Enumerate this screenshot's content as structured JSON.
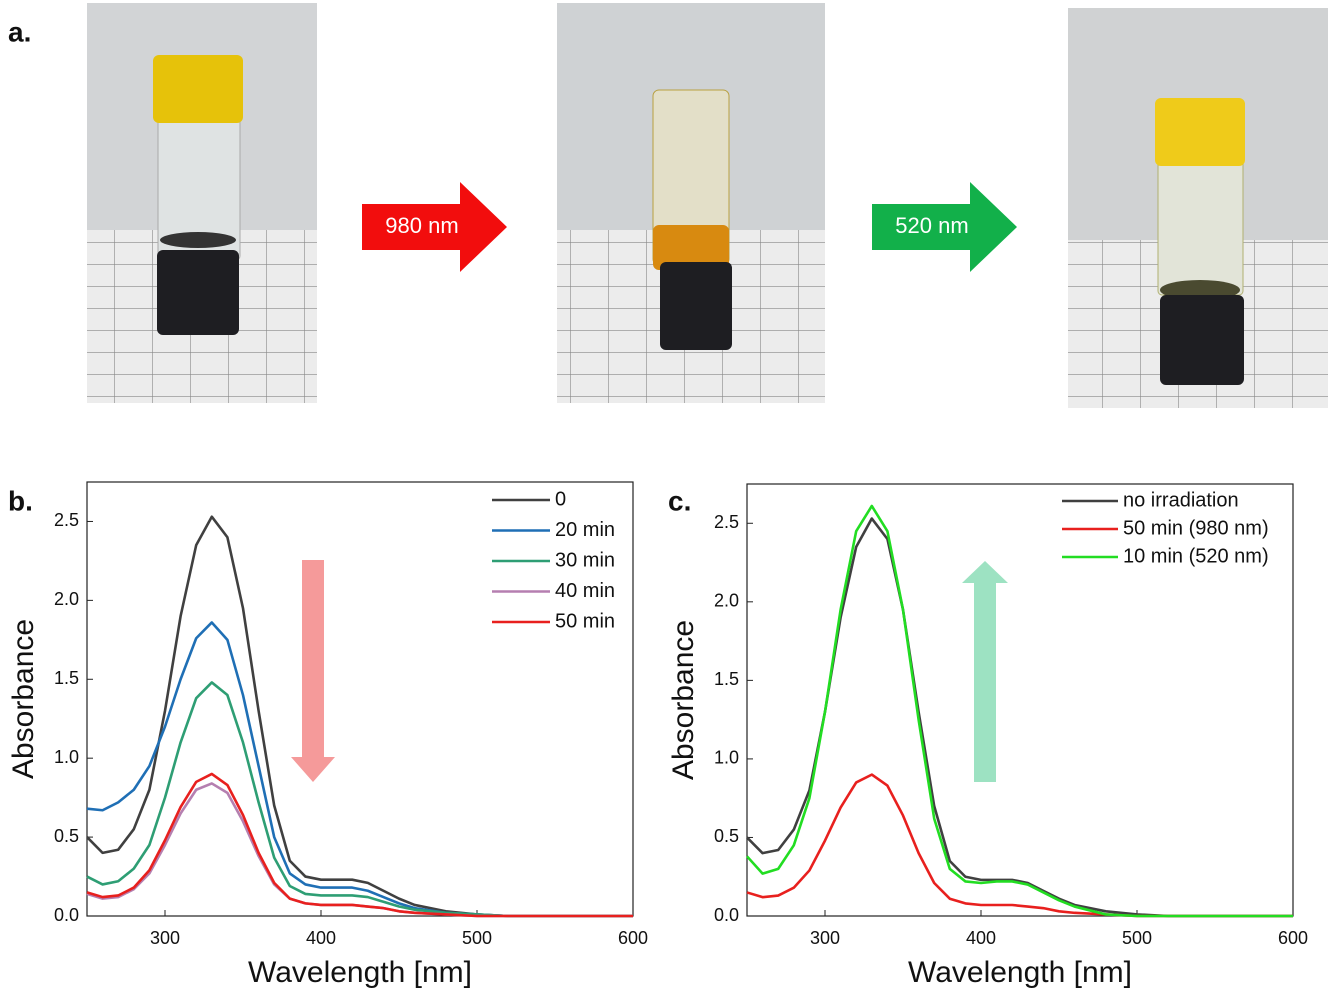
{
  "panel_a": {
    "label": "a.",
    "arrows": [
      "980 nm",
      "520 nm"
    ]
  },
  "chart_data": [
    {
      "type": "line",
      "panel_label": "b.",
      "xlabel": "Wavelength [nm]",
      "ylabel": "Absorbance",
      "xlim": [
        250,
        600
      ],
      "xticks": [
        300,
        400,
        500,
        600
      ],
      "ylim": [
        0,
        2.75
      ],
      "yticks": [
        {
          "value": 0,
          "label": "0.0"
        },
        0.5,
        {
          "value": 1,
          "label": "1.0"
        },
        1.5,
        {
          "value": 2,
          "label": "2.0"
        },
        2.5
      ],
      "legend": "upper right",
      "x": [
        250,
        260,
        270,
        280,
        290,
        300,
        310,
        320,
        330,
        340,
        350,
        360,
        370,
        380,
        390,
        400,
        410,
        420,
        430,
        440,
        450,
        460,
        480,
        500,
        520,
        550,
        600
      ],
      "series": [
        {
          "name": "0",
          "color": "#404040",
          "values": [
            0.5,
            0.4,
            0.42,
            0.55,
            0.8,
            1.3,
            1.9,
            2.35,
            2.53,
            2.4,
            1.95,
            1.3,
            0.7,
            0.35,
            0.25,
            0.23,
            0.23,
            0.23,
            0.21,
            0.16,
            0.11,
            0.07,
            0.03,
            0.01,
            0,
            0,
            0
          ]
        },
        {
          "name": "20 min",
          "color": "#1f6fb5",
          "values": [
            0.68,
            0.67,
            0.72,
            0.8,
            0.95,
            1.2,
            1.5,
            1.76,
            1.86,
            1.75,
            1.4,
            0.95,
            0.5,
            0.27,
            0.2,
            0.18,
            0.18,
            0.18,
            0.16,
            0.12,
            0.08,
            0.05,
            0.02,
            0.01,
            0,
            0,
            0
          ]
        },
        {
          "name": "30 min",
          "color": "#2e9e74",
          "values": [
            0.25,
            0.2,
            0.22,
            0.3,
            0.45,
            0.75,
            1.1,
            1.38,
            1.48,
            1.4,
            1.1,
            0.72,
            0.37,
            0.19,
            0.14,
            0.13,
            0.13,
            0.13,
            0.12,
            0.09,
            0.06,
            0.04,
            0.02,
            0.01,
            0,
            0,
            0
          ]
        },
        {
          "name": "40 min",
          "color": "#b57fb0",
          "values": [
            0.14,
            0.11,
            0.12,
            0.17,
            0.27,
            0.45,
            0.65,
            0.8,
            0.84,
            0.78,
            0.6,
            0.38,
            0.2,
            0.11,
            0.08,
            0.07,
            0.07,
            0.07,
            0.06,
            0.05,
            0.03,
            0.02,
            0.01,
            0,
            0,
            0,
            0
          ]
        },
        {
          "name": "50 min",
          "color": "#e8201e",
          "values": [
            0.15,
            0.12,
            0.13,
            0.18,
            0.29,
            0.48,
            0.69,
            0.85,
            0.9,
            0.83,
            0.64,
            0.4,
            0.21,
            0.11,
            0.08,
            0.07,
            0.07,
            0.07,
            0.06,
            0.05,
            0.03,
            0.02,
            0.01,
            0,
            0,
            0,
            0
          ]
        }
      ]
    },
    {
      "type": "line",
      "panel_label": "c.",
      "xlabel": "Wavelength [nm]",
      "ylabel": "Absorbance",
      "xlim": [
        250,
        600
      ],
      "xticks": [
        300,
        400,
        500,
        600
      ],
      "ylim": [
        0,
        2.75
      ],
      "yticks": [
        {
          "value": 0,
          "label": "0.0"
        },
        0.5,
        {
          "value": 1,
          "label": "1.0"
        },
        1.5,
        {
          "value": 2,
          "label": "2.0"
        },
        2.5
      ],
      "legend": "upper right",
      "x": [
        250,
        260,
        270,
        280,
        290,
        300,
        310,
        320,
        330,
        340,
        350,
        360,
        370,
        380,
        390,
        400,
        410,
        420,
        430,
        440,
        450,
        460,
        480,
        500,
        520,
        550,
        600
      ],
      "series": [
        {
          "name": "no irradiation",
          "color": "#404040",
          "values": [
            0.5,
            0.4,
            0.42,
            0.55,
            0.8,
            1.3,
            1.9,
            2.35,
            2.53,
            2.4,
            1.95,
            1.3,
            0.7,
            0.35,
            0.25,
            0.23,
            0.23,
            0.23,
            0.21,
            0.16,
            0.11,
            0.07,
            0.03,
            0.01,
            0,
            0,
            0
          ]
        },
        {
          "name": "50 min (980 nm)",
          "color": "#e8201e",
          "values": [
            0.15,
            0.12,
            0.13,
            0.18,
            0.29,
            0.48,
            0.69,
            0.85,
            0.9,
            0.83,
            0.64,
            0.4,
            0.21,
            0.11,
            0.08,
            0.07,
            0.07,
            0.07,
            0.06,
            0.05,
            0.03,
            0.02,
            0.01,
            0,
            0,
            0,
            0
          ]
        },
        {
          "name": "10 min (520 nm)",
          "color": "#22dd22",
          "values": [
            0.38,
            0.27,
            0.3,
            0.45,
            0.75,
            1.3,
            1.95,
            2.45,
            2.61,
            2.45,
            1.95,
            1.25,
            0.62,
            0.3,
            0.22,
            0.21,
            0.22,
            0.22,
            0.2,
            0.15,
            0.1,
            0.06,
            0.01,
            0,
            0,
            0,
            0
          ]
        }
      ]
    }
  ]
}
